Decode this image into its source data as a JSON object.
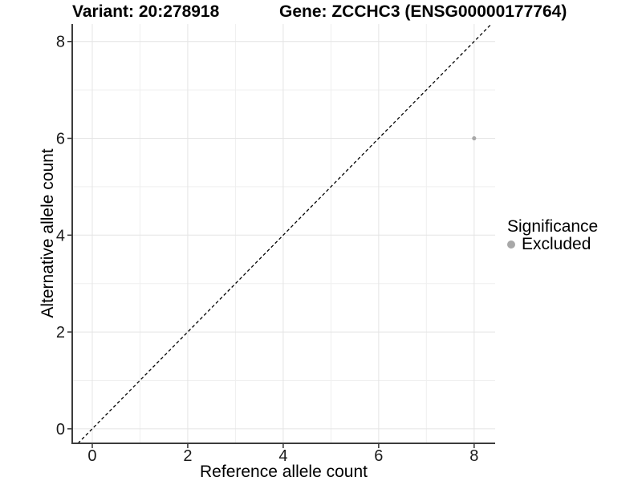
{
  "colors": {
    "background": "#ffffff",
    "grid_major": "#e4e4e4",
    "grid_minor": "#efefef",
    "axis_line": "#3c3c3c",
    "tick_mark": "#333333",
    "tick_text": "#1a1a1a",
    "identity_line": "#000000",
    "point": "#a8a8a8"
  },
  "chart_data": {
    "type": "scatter",
    "title_left": "Variant: 20:278918",
    "title_right": "Gene: ZCCHC3 (ENSG00000177764)",
    "xlabel": "Reference allele count",
    "ylabel": "Alternative allele count",
    "xlim": [
      -0.42,
      8.44
    ],
    "ylim": [
      -0.3,
      8.36
    ],
    "x_ticks": [
      0,
      2,
      4,
      6,
      8
    ],
    "y_ticks": [
      0,
      2,
      4,
      6,
      8
    ],
    "grid_major_x": [
      0,
      2,
      4,
      6,
      8
    ],
    "grid_minor_x": [
      1,
      3,
      5,
      7
    ],
    "grid_major_y": [
      0,
      2,
      4,
      6,
      8
    ],
    "grid_minor_y": [
      1,
      3,
      5,
      7
    ],
    "grid_on": true,
    "points": [
      {
        "x": 8,
        "y": 6,
        "significance": "Excluded",
        "color": "#a8a8a8",
        "radius": 2.6
      }
    ],
    "identity_line": {
      "equation": "y = x",
      "style": "dashed",
      "color": "#000000"
    },
    "legend": {
      "title": "Significance",
      "position": "right",
      "entries": [
        {
          "label": "Excluded",
          "color": "#a8a8a8"
        }
      ]
    }
  }
}
